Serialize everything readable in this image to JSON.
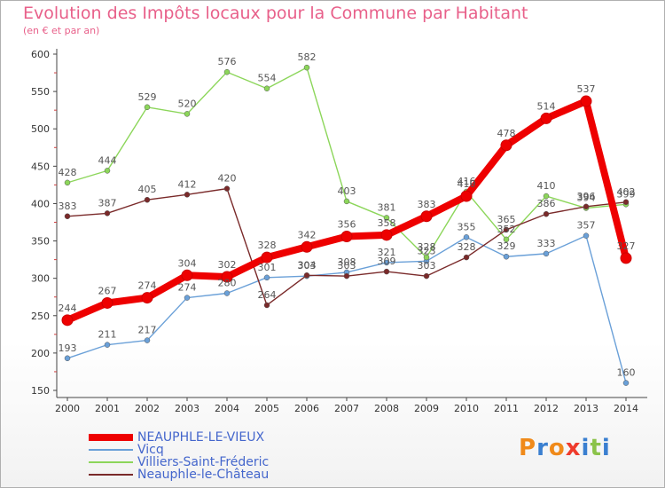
{
  "title": "Evolution des Impôts locaux pour la Commune par Habitant",
  "subtitle": "(en € et par an)",
  "logo": {
    "text": "Proxiti",
    "letters": [
      "P",
      "r",
      "o",
      "x",
      "i",
      "t",
      "i"
    ],
    "colors": [
      "#f08a1a",
      "#3a7fd0",
      "#f08a1a",
      "#ef3b2c",
      "#3a7fd0",
      "#8bc34a",
      "#3a7fd0"
    ]
  },
  "chart_data": {
    "type": "line",
    "title": "Evolution des Impôts locaux pour la Commune par Habitant",
    "subtitle": "(en € et par an)",
    "categories": [
      "2000",
      "2001",
      "2002",
      "2003",
      "2004",
      "2005",
      "2006",
      "2007",
      "2008",
      "2009",
      "2010",
      "2011",
      "2012",
      "2013",
      "2014"
    ],
    "ylim": [
      150,
      600
    ],
    "yticks": [
      150,
      200,
      250,
      300,
      350,
      400,
      450,
      500,
      550,
      600
    ],
    "grid": false,
    "series": [
      {
        "name": "NEAUPHLE-LE-VIEUX",
        "color": "#ee0000",
        "thick": true,
        "values": [
          244,
          267,
          274,
          304,
          302,
          328,
          342,
          356,
          358,
          383,
          410,
          478,
          514,
          537,
          327
        ]
      },
      {
        "name": "Vicq",
        "color": "#6aa0d8",
        "thick": false,
        "values": [
          193,
          211,
          217,
          274,
          280,
          301,
          303,
          308,
          321,
          323,
          355,
          329,
          333,
          357,
          160
        ]
      },
      {
        "name": "Villiers-Saint-Fréderic",
        "color": "#8cd65a",
        "thick": false,
        "values": [
          428,
          444,
          529,
          520,
          576,
          554,
          582,
          403,
          381,
          328,
          416,
          352,
          410,
          394,
          399
        ]
      },
      {
        "name": "Neauphle-le-Château",
        "color": "#7a2a2a",
        "thick": false,
        "values": [
          383,
          387,
          405,
          412,
          420,
          264,
          304,
          303,
          309,
          303,
          328,
          365,
          386,
          396,
          402
        ]
      }
    ]
  }
}
